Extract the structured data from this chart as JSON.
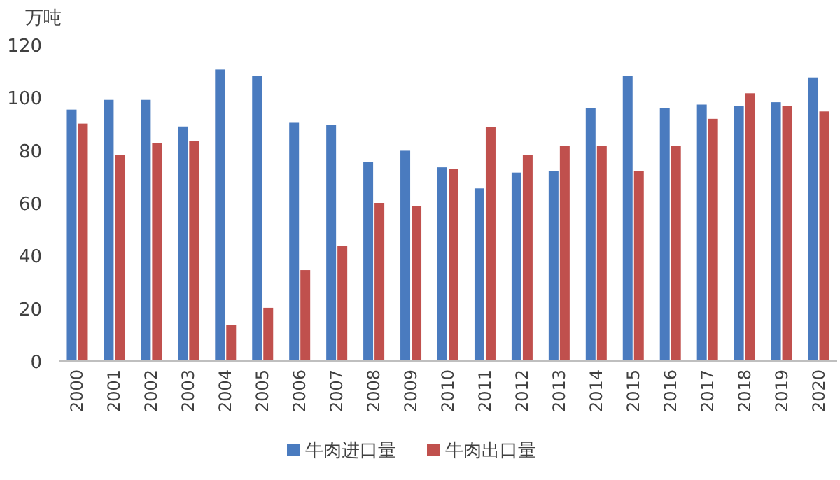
{
  "chart_data": {
    "type": "bar",
    "ylabel": "万吨",
    "categories": [
      "2000",
      "2001",
      "2002",
      "2003",
      "2004",
      "2005",
      "2006",
      "2007",
      "2008",
      "2009",
      "2010",
      "2011",
      "2012",
      "2013",
      "2014",
      "2015",
      "2016",
      "2017",
      "2018",
      "2019",
      "2020"
    ],
    "series": [
      {
        "name": "牛肉进口量",
        "color": "#4a7bbf",
        "values": [
          95.4,
          99.1,
          99.1,
          89.0,
          110.6,
          108.1,
          90.4,
          89.6,
          75.6,
          79.8,
          73.5,
          65.5,
          71.5,
          72.0,
          95.9,
          108.1,
          95.9,
          97.3,
          96.8,
          98.2,
          107.6
        ]
      },
      {
        "name": "牛肉出口量",
        "color": "#c0504d",
        "values": [
          90.1,
          78.1,
          82.7,
          83.5,
          13.8,
          20.2,
          34.5,
          43.7,
          60.0,
          58.8,
          72.9,
          88.7,
          78.1,
          81.6,
          81.6,
          72.0,
          81.6,
          91.9,
          101.6,
          96.8,
          94.7
        ]
      }
    ],
    "ylim": [
      0,
      120
    ],
    "yticks": [
      0,
      20,
      40,
      60,
      80,
      100,
      120
    ],
    "grid": false,
    "legend": "bottom"
  }
}
